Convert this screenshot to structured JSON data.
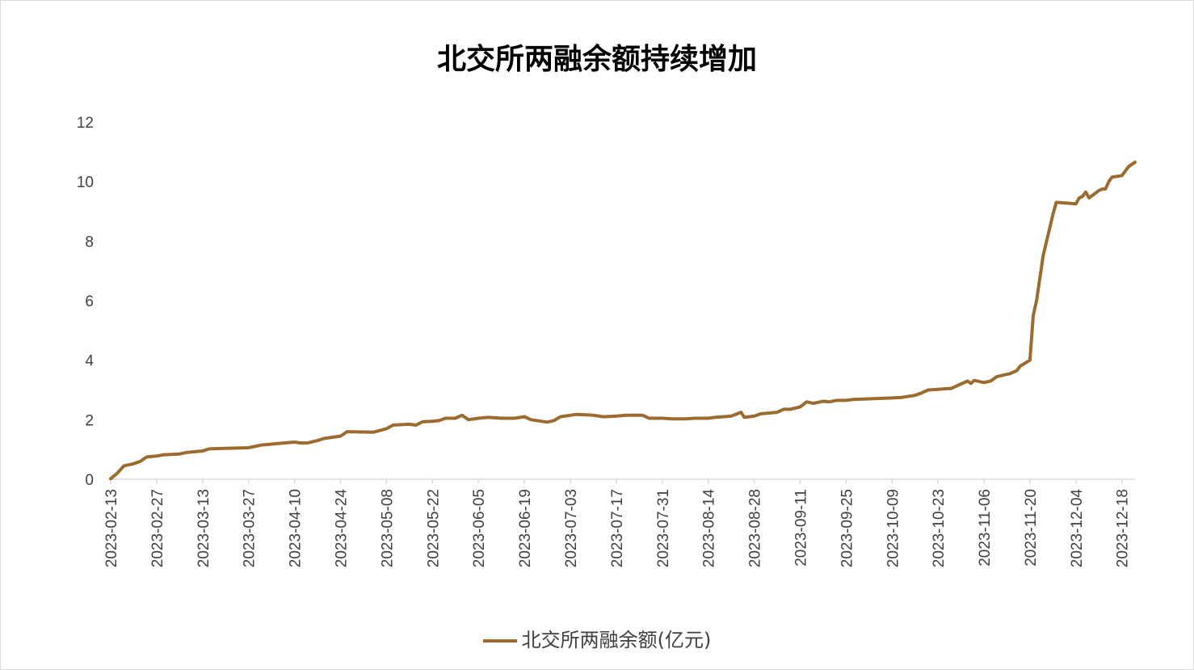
{
  "chart_data": {
    "type": "line",
    "title": "北交所两融余额持续增加",
    "xlabel": "",
    "ylabel": "",
    "ylim": [
      0,
      12
    ],
    "yticks": [
      "0",
      "2",
      "4",
      "6",
      "8",
      "10",
      "12"
    ],
    "grid": false,
    "legend_position": "bottom",
    "x_tick_labels": [
      "2023-02-13",
      "2023-02-27",
      "2023-03-13",
      "2023-03-27",
      "2023-04-10",
      "2023-04-24",
      "2023-05-08",
      "2023-05-22",
      "2023-06-05",
      "2023-06-19",
      "2023-07-03",
      "2023-07-17",
      "2023-07-31",
      "2023-08-14",
      "2023-08-28",
      "2023-09-11",
      "2023-09-25",
      "2023-10-09",
      "2023-10-23",
      "2023-11-06",
      "2023-11-20",
      "2023-12-04",
      "2023-12-18"
    ],
    "series": [
      {
        "name": "北交所两融余额(亿元)",
        "color": "#9c6b30",
        "points": [
          [
            "2023-02-13",
            0.02
          ],
          [
            "2023-02-15",
            0.2
          ],
          [
            "2023-02-17",
            0.45
          ],
          [
            "2023-02-20",
            0.52
          ],
          [
            "2023-02-22",
            0.6
          ],
          [
            "2023-02-24",
            0.75
          ],
          [
            "2023-02-27",
            0.78
          ],
          [
            "2023-03-01",
            0.82
          ],
          [
            "2023-03-06",
            0.85
          ],
          [
            "2023-03-08",
            0.9
          ],
          [
            "2023-03-13",
            0.95
          ],
          [
            "2023-03-15",
            1.02
          ],
          [
            "2023-03-20",
            1.04
          ],
          [
            "2023-03-27",
            1.06
          ],
          [
            "2023-03-31",
            1.15
          ],
          [
            "2023-04-05",
            1.2
          ],
          [
            "2023-04-10",
            1.25
          ],
          [
            "2023-04-12",
            1.22
          ],
          [
            "2023-04-14",
            1.22
          ],
          [
            "2023-04-17",
            1.3
          ],
          [
            "2023-04-19",
            1.37
          ],
          [
            "2023-04-24",
            1.45
          ],
          [
            "2023-04-26",
            1.6
          ],
          [
            "2023-05-04",
            1.58
          ],
          [
            "2023-05-08",
            1.7
          ],
          [
            "2023-05-10",
            1.82
          ],
          [
            "2023-05-15",
            1.85
          ],
          [
            "2023-05-17",
            1.82
          ],
          [
            "2023-05-19",
            1.93
          ],
          [
            "2023-05-22",
            1.95
          ],
          [
            "2023-05-24",
            1.97
          ],
          [
            "2023-05-26",
            2.05
          ],
          [
            "2023-05-29",
            2.05
          ],
          [
            "2023-05-31",
            2.15
          ],
          [
            "2023-06-02",
            2.0
          ],
          [
            "2023-06-05",
            2.05
          ],
          [
            "2023-06-08",
            2.08
          ],
          [
            "2023-06-12",
            2.05
          ],
          [
            "2023-06-16",
            2.05
          ],
          [
            "2023-06-19",
            2.1
          ],
          [
            "2023-06-21",
            2.0
          ],
          [
            "2023-06-26",
            1.92
          ],
          [
            "2023-06-28",
            1.97
          ],
          [
            "2023-06-30",
            2.1
          ],
          [
            "2023-07-03",
            2.15
          ],
          [
            "2023-07-05",
            2.18
          ],
          [
            "2023-07-10",
            2.15
          ],
          [
            "2023-07-13",
            2.1
          ],
          [
            "2023-07-17",
            2.12
          ],
          [
            "2023-07-20",
            2.15
          ],
          [
            "2023-07-25",
            2.15
          ],
          [
            "2023-07-27",
            2.05
          ],
          [
            "2023-07-31",
            2.05
          ],
          [
            "2023-08-03",
            2.03
          ],
          [
            "2023-08-07",
            2.03
          ],
          [
            "2023-08-10",
            2.05
          ],
          [
            "2023-08-14",
            2.05
          ],
          [
            "2023-08-16",
            2.08
          ],
          [
            "2023-08-21",
            2.12
          ],
          [
            "2023-08-24",
            2.25
          ],
          [
            "2023-08-25",
            2.08
          ],
          [
            "2023-08-28",
            2.12
          ],
          [
            "2023-08-30",
            2.2
          ],
          [
            "2023-09-04",
            2.25
          ],
          [
            "2023-09-06",
            2.35
          ],
          [
            "2023-09-08",
            2.35
          ],
          [
            "2023-09-11",
            2.43
          ],
          [
            "2023-09-13",
            2.6
          ],
          [
            "2023-09-15",
            2.55
          ],
          [
            "2023-09-18",
            2.62
          ],
          [
            "2023-09-20",
            2.6
          ],
          [
            "2023-09-22",
            2.65
          ],
          [
            "2023-09-25",
            2.65
          ],
          [
            "2023-09-27",
            2.68
          ],
          [
            "2023-10-09",
            2.73
          ],
          [
            "2023-10-12",
            2.75
          ],
          [
            "2023-10-16",
            2.82
          ],
          [
            "2023-10-18",
            2.9
          ],
          [
            "2023-10-20",
            3.0
          ],
          [
            "2023-10-23",
            3.02
          ],
          [
            "2023-10-26",
            3.05
          ],
          [
            "2023-10-27",
            3.05
          ],
          [
            "2023-10-30",
            3.2
          ],
          [
            "2023-11-01",
            3.3
          ],
          [
            "2023-11-02",
            3.22
          ],
          [
            "2023-11-03",
            3.32
          ],
          [
            "2023-11-06",
            3.25
          ],
          [
            "2023-11-08",
            3.3
          ],
          [
            "2023-11-10",
            3.45
          ],
          [
            "2023-11-14",
            3.55
          ],
          [
            "2023-11-16",
            3.65
          ],
          [
            "2023-11-17",
            3.8
          ],
          [
            "2023-11-20",
            4.0
          ],
          [
            "2023-11-21",
            5.5
          ],
          [
            "2023-11-22",
            6.0
          ],
          [
            "2023-11-24",
            7.5
          ],
          [
            "2023-11-27",
            8.9
          ],
          [
            "2023-11-28",
            9.3
          ],
          [
            "2023-12-01",
            9.28
          ],
          [
            "2023-12-04",
            9.25
          ],
          [
            "2023-12-05",
            9.45
          ],
          [
            "2023-12-06",
            9.5
          ],
          [
            "2023-12-07",
            9.65
          ],
          [
            "2023-12-08",
            9.45
          ],
          [
            "2023-12-11",
            9.7
          ],
          [
            "2023-12-12",
            9.75
          ],
          [
            "2023-12-13",
            9.75
          ],
          [
            "2023-12-14",
            10.0
          ],
          [
            "2023-12-15",
            10.15
          ],
          [
            "2023-12-18",
            10.2
          ],
          [
            "2023-12-19",
            10.35
          ],
          [
            "2023-12-20",
            10.5
          ],
          [
            "2023-12-22",
            10.65
          ]
        ]
      }
    ]
  }
}
